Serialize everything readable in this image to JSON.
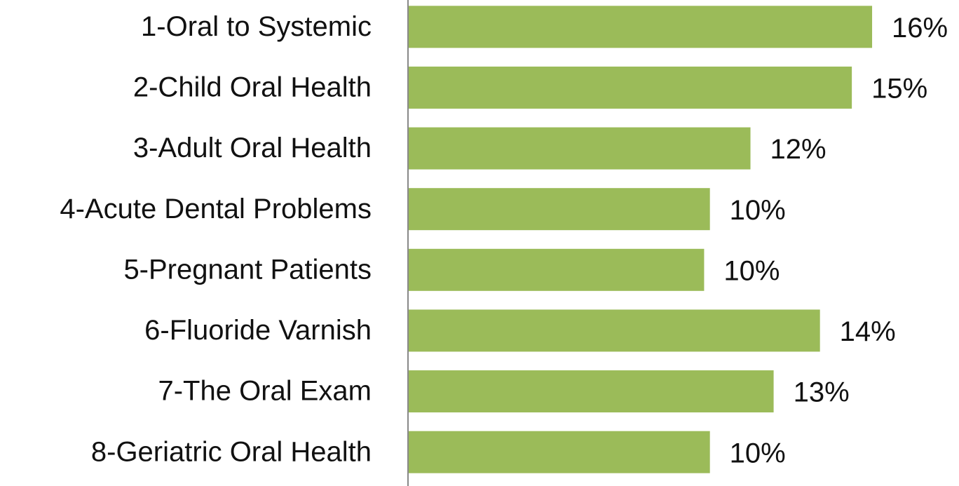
{
  "chart_data": {
    "type": "hbar",
    "categories": [
      "1-Oral to Systemic",
      "2-Child Oral Health",
      "3-Adult Oral Health",
      "4-Acute Dental Problems",
      "5-Pregnant Patients",
      "6-Fluoride Varnish",
      "7-The Oral Exam",
      "8-Geriatric Oral Health"
    ],
    "values": [
      16.0,
      15.3,
      11.8,
      10.4,
      10.2,
      14.2,
      12.6,
      10.4
    ],
    "value_labels": [
      "16%",
      "15%",
      "12%",
      "10%",
      "10%",
      "14%",
      "13%",
      "10%"
    ],
    "color": "#9bbb59",
    "xlim": [
      0,
      19
    ]
  }
}
